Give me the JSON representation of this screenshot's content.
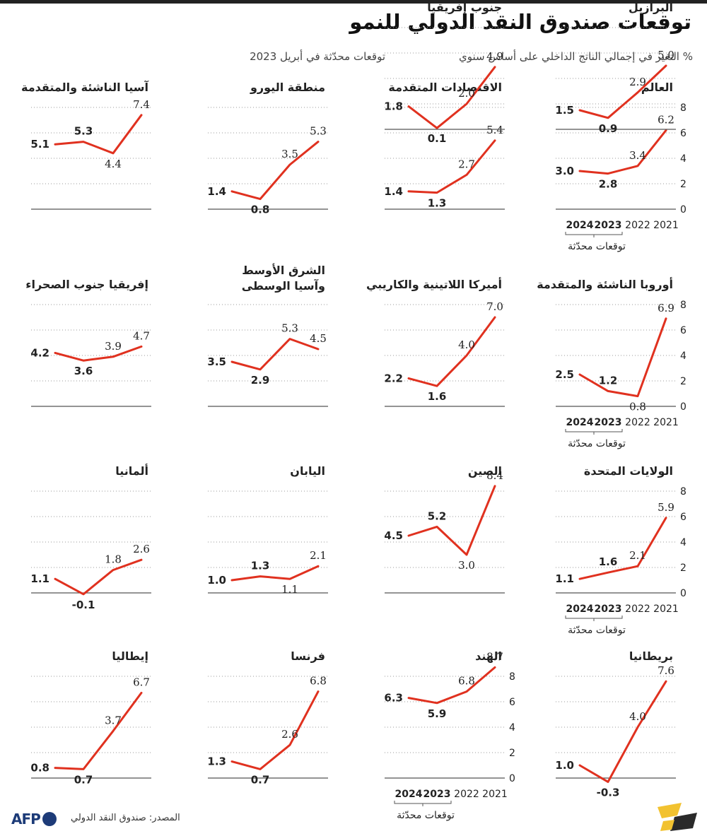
{
  "title": "توقعات صندوق النقد الدولي للنمو",
  "subtitle": "% التغير في إجمالي الناتج الداخلي على أساس سنوي",
  "legend": "توقعات محدّثة في أبريل 2023",
  "source": "المصدر: صندوق النقد الدولي",
  "afp_logo_text": "AFP",
  "colors": {
    "line": "#e0311f",
    "grid": "#9a9a9a",
    "text": "#222222",
    "afp": "#1d3b78"
  },
  "chart_data": [
    {
      "type": "line",
      "name": "العالم",
      "categories": [
        "2021",
        "2022",
        "2023",
        "2024"
      ],
      "values": [
        6.2,
        3.4,
        2.8,
        3.0
      ],
      "ylim": [
        0,
        8
      ],
      "yticks": [
        0,
        2,
        4,
        6,
        8
      ],
      "bracket_label": "توقعات محدّثة"
    },
    {
      "type": "line",
      "name": "الاقتصادات المتقدمة",
      "categories": [
        "2021",
        "2022",
        "2023",
        "2024"
      ],
      "values": [
        5.4,
        2.7,
        1.3,
        1.4
      ],
      "ylim": [
        0,
        8
      ]
    },
    {
      "type": "line",
      "name": "منطقة اليورو",
      "categories": [
        "2021",
        "2022",
        "2023",
        "2024"
      ],
      "values": [
        5.3,
        3.5,
        0.8,
        1.4
      ],
      "ylim": [
        0,
        8
      ]
    },
    {
      "type": "line",
      "name": "آسيا الناشئة والمتقدمة",
      "categories": [
        "2021",
        "2022",
        "2023",
        "2024"
      ],
      "values": [
        7.4,
        4.4,
        5.3,
        5.1
      ],
      "ylim": [
        0,
        8
      ]
    },
    {
      "type": "line",
      "name": "أوروبا الناشئة والمتقدمة",
      "categories": [
        "2021",
        "2022",
        "2023",
        "2024"
      ],
      "values": [
        6.9,
        0.8,
        1.2,
        2.5
      ],
      "ylim": [
        0,
        8
      ],
      "yticks": [
        0,
        2,
        4,
        6,
        8
      ],
      "bracket_label": "توقعات محدّثة"
    },
    {
      "type": "line",
      "name": "أميركا اللاتينية والكاريبي",
      "categories": [
        "2021",
        "2022",
        "2023",
        "2024"
      ],
      "values": [
        7.0,
        4.0,
        1.6,
        2.2
      ],
      "ylim": [
        0,
        8
      ]
    },
    {
      "type": "line",
      "name": "الشرق الأوسط وآسيا الوسطى",
      "name_lines": [
        "الشرق الأوسط",
        "وآسيا الوسطى"
      ],
      "categories": [
        "2021",
        "2022",
        "2023",
        "2024"
      ],
      "values": [
        4.5,
        5.3,
        2.9,
        3.5
      ],
      "ylim": [
        0,
        8
      ]
    },
    {
      "type": "line",
      "name": "إفريقيا جنوب الصحراء",
      "categories": [
        "2021",
        "2022",
        "2023",
        "2024"
      ],
      "values": [
        4.7,
        3.9,
        3.6,
        4.2
      ],
      "ylim": [
        0,
        8
      ]
    },
    {
      "type": "line",
      "name": "الولايات المتحدة",
      "categories": [
        "2021",
        "2022",
        "2023",
        "2024"
      ],
      "values": [
        5.9,
        2.1,
        1.6,
        1.1
      ],
      "ylim": [
        0,
        8
      ],
      "yticks": [
        0,
        2,
        4,
        6,
        8
      ],
      "bracket_label": "توقعات محدّثة"
    },
    {
      "type": "line",
      "name": "الصين",
      "categories": [
        "2021",
        "2022",
        "2023",
        "2024"
      ],
      "values": [
        8.4,
        3.0,
        5.2,
        4.5
      ],
      "ylim": [
        0,
        8
      ]
    },
    {
      "type": "line",
      "name": "اليابان",
      "categories": [
        "2021",
        "2022",
        "2023",
        "2024"
      ],
      "values": [
        2.1,
        1.1,
        1.3,
        1.0
      ],
      "ylim": [
        0,
        8
      ]
    },
    {
      "type": "line",
      "name": "ألمانيا",
      "categories": [
        "2021",
        "2022",
        "2023",
        "2024"
      ],
      "values": [
        2.6,
        1.8,
        -0.1,
        1.1
      ],
      "ylim": [
        0,
        8
      ]
    },
    {
      "type": "line",
      "name": "بريطانيا",
      "categories": [
        "2021",
        "2022",
        "2023",
        "2024"
      ],
      "values": [
        7.6,
        4.0,
        -0.3,
        1.0
      ],
      "ylim": [
        0,
        8
      ]
    },
    {
      "type": "line",
      "name": "الهند",
      "categories": [
        "2021",
        "2022",
        "2023",
        "2024"
      ],
      "values": [
        8.7,
        6.8,
        5.9,
        6.3
      ],
      "ylim": [
        0,
        8
      ],
      "yticks": [
        0,
        2,
        4,
        6,
        8
      ],
      "bracket_label": "توقعات محدّثة"
    },
    {
      "type": "line",
      "name": "فرنسا",
      "categories": [
        "2021",
        "2022",
        "2023",
        "2024"
      ],
      "values": [
        6.8,
        2.6,
        0.7,
        1.3
      ],
      "ylim": [
        0,
        8
      ]
    },
    {
      "type": "line",
      "name": "إيطاليا",
      "categories": [
        "2021",
        "2022",
        "2023",
        "2024"
      ],
      "values": [
        6.7,
        3.7,
        0.7,
        0.8
      ],
      "ylim": [
        0,
        8
      ]
    },
    {
      "type": "line",
      "name": "البرازيل",
      "categories": [
        "2021",
        "2022",
        "2023",
        "2024"
      ],
      "values": [
        5.0,
        2.9,
        0.9,
        1.5
      ],
      "ylim": [
        0,
        8
      ]
    },
    {
      "type": "line",
      "name": "جنوب إفريقيا",
      "categories": [
        "2021",
        "2022",
        "2023",
        "2024"
      ],
      "values": [
        4.9,
        2.0,
        0.1,
        1.8
      ],
      "ylim": [
        0,
        8
      ]
    }
  ]
}
